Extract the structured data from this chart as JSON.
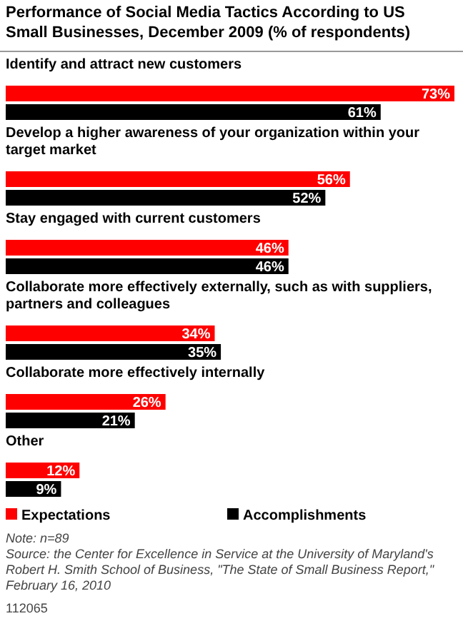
{
  "chart_data": {
    "type": "bar",
    "orientation": "horizontal",
    "title": "Performance of Social Media Tactics According to US Small Businesses, December 2009 (% of respondents)",
    "categories": [
      "Identify and attract new customers",
      "Develop a higher awareness of your organization within your target market",
      "Stay engaged with current customers",
      "Collaborate more effectively externally, such as with suppliers, partners and colleagues",
      "Collaborate more effectively internally",
      "Other"
    ],
    "series": [
      {
        "name": "Expectations",
        "color": "#ff0000",
        "values": [
          73,
          56,
          46,
          34,
          26,
          12
        ],
        "value_labels": [
          "73%",
          "56%",
          "46%",
          "34%",
          "26%",
          "12%"
        ]
      },
      {
        "name": "Accomplishments",
        "color": "#000000",
        "values": [
          61,
          52,
          46,
          35,
          21,
          9
        ],
        "value_labels": [
          "61%",
          "52%",
          "46%",
          "35%",
          "21%",
          "9%"
        ]
      }
    ],
    "legend": "bottom",
    "annotations": [
      "Note: n=89",
      "Source: the Center for Excellence in Service at the University of Maryland's Robert H. Smith School of Business, \"The State of Small Business Report,\" February 16, 2010",
      "112065"
    ]
  }
}
